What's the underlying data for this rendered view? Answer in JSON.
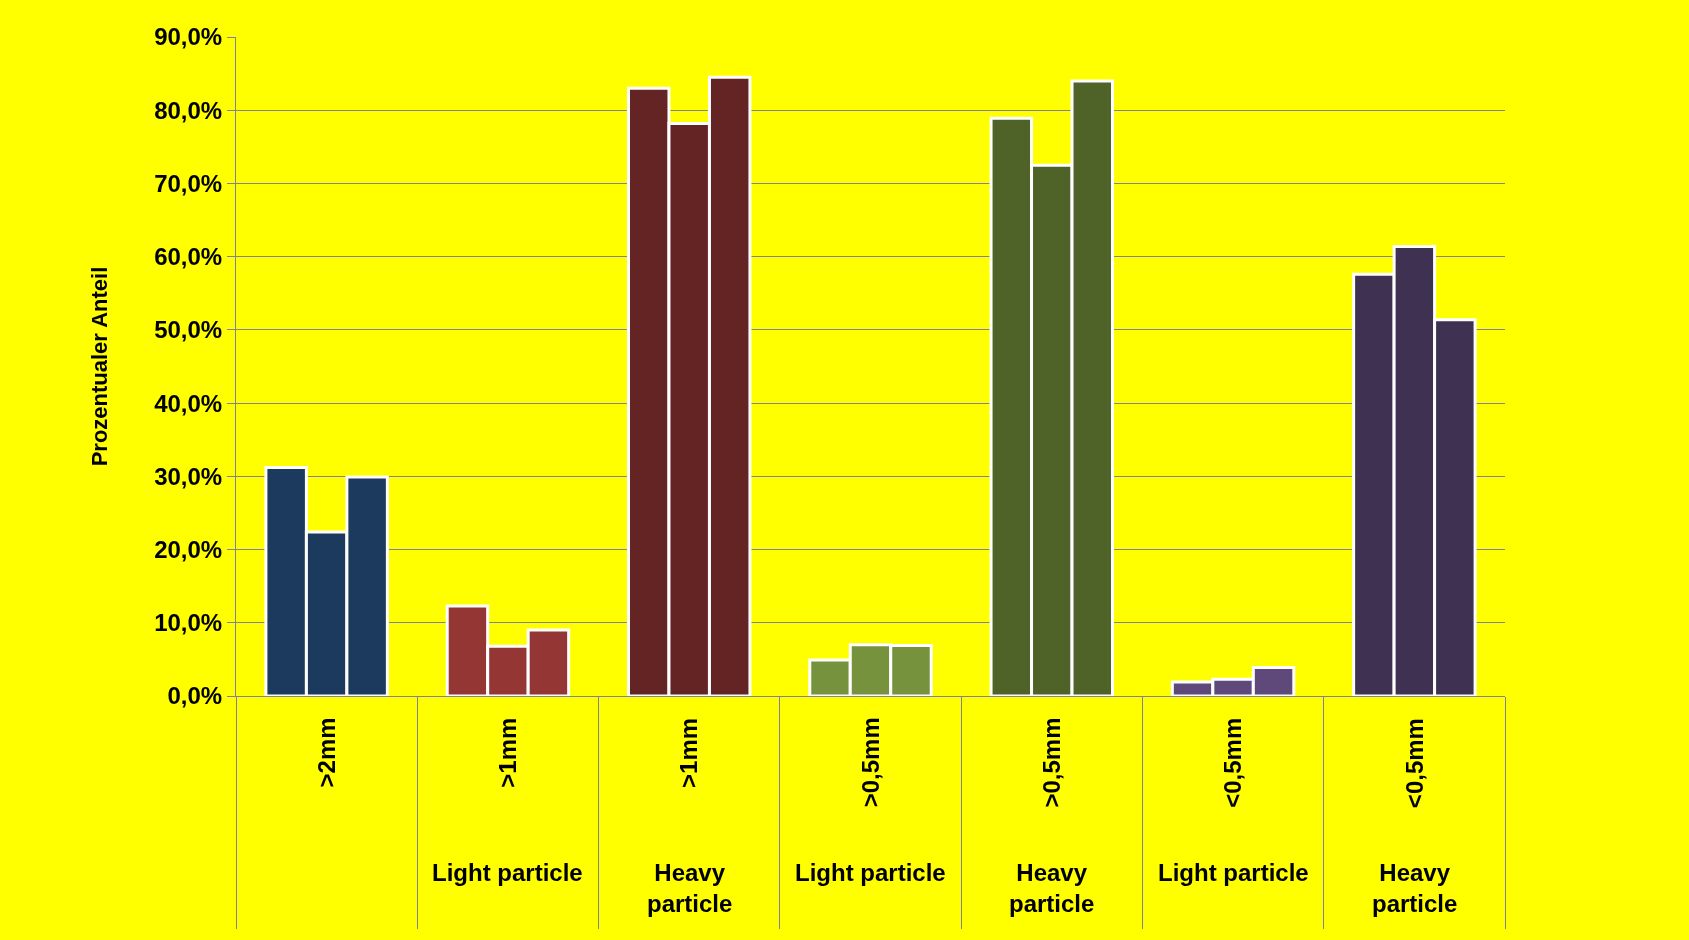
{
  "chart_data": {
    "type": "bar",
    "ylabel": "Prozentualer Anteil",
    "categories": [
      ">2mm",
      ">1mm\nLight particle",
      ">1mm\nHeavy\nparticle",
      ">0,5mm\nLight particle",
      ">0,5mm\nHeavy\nparticle",
      "<0,5mm\nLight particle",
      "<0,5mm\nHeavy\nparticle"
    ],
    "series": [
      {
        "colors": [
          "#1b3a5e",
          "#943634",
          "#632423",
          "#76923c",
          "#4f6228",
          "#5f497a",
          "#3f3151"
        ],
        "values": [
          31.2,
          12.3,
          83.0,
          4.9,
          78.9,
          1.9,
          57.6
        ]
      },
      {
        "colors": [
          "#1b3a5e",
          "#943634",
          "#632423",
          "#76923c",
          "#4f6228",
          "#5f497a",
          "#3f3151"
        ],
        "values": [
          22.4,
          6.8,
          78.2,
          7.0,
          72.5,
          2.3,
          61.4
        ]
      },
      {
        "colors": [
          "#1b3a5e",
          "#943634",
          "#632423",
          "#76923c",
          "#4f6228",
          "#5f497a",
          "#3f3151"
        ],
        "values": [
          29.9,
          9.0,
          84.5,
          6.9,
          84.0,
          3.9,
          51.4
        ]
      }
    ],
    "ylim": [
      0,
      90
    ],
    "yticks": [
      {
        "value": 0,
        "label": "0,0%"
      },
      {
        "value": 10,
        "label": "10,0%"
      },
      {
        "value": 20,
        "label": "20,0%"
      },
      {
        "value": 30,
        "label": "30,0%"
      },
      {
        "value": 40,
        "label": "40,0%"
      },
      {
        "value": 50,
        "label": "50,0%"
      },
      {
        "value": 60,
        "label": "60,0%"
      },
      {
        "value": 70,
        "label": "70,0%"
      },
      {
        "value": 80,
        "label": "80,0%"
      },
      {
        "value": 90,
        "label": "90,0%"
      }
    ],
    "grid": "y"
  }
}
